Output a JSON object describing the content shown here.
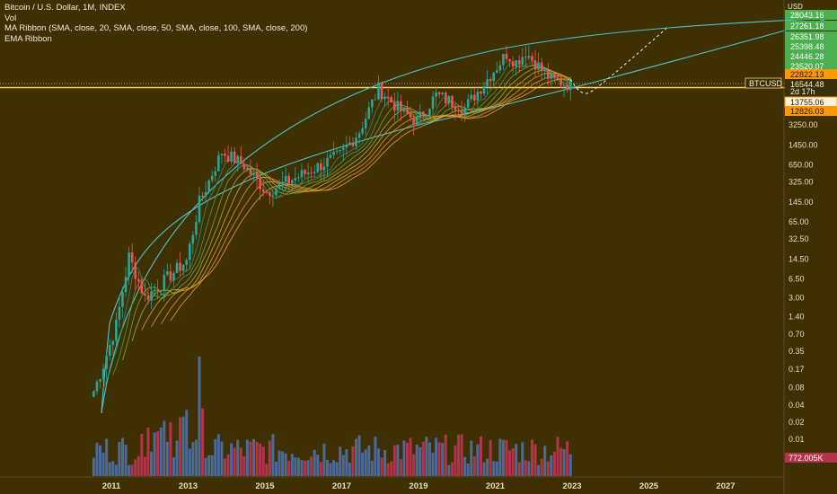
{
  "legend": {
    "title": "Bitcoin / U.S. Dollar, 1M, INDEX",
    "vol": "Vol",
    "ma_ribbon": "MA Ribbon (SMA, close, 20, SMA, close, 50, SMA, close, 100, SMA, close, 200)",
    "ema_ribbon": "EMA Ribbon"
  },
  "axis": {
    "currency": "USD",
    "symbol_tag": "BTCUSD",
    "countdown": "2d 17h",
    "volume_value": "772.005K"
  },
  "colors": {
    "background": "#3f3004",
    "up": "#26a69a",
    "down": "#ef5350",
    "vol_up": "#4a6a9a",
    "vol_down": "#b2344a",
    "curve": "#4fc3c8",
    "hline": "#f5d36a",
    "green_badge": "#4caf50",
    "orange_badge": "#ff9800"
  },
  "chart_data": {
    "type": "candlestick",
    "title": "Bitcoin / U.S. Dollar, 1M, INDEX",
    "y_scale": "log",
    "y_tick_labels": [
      "3250.00",
      "1450.00",
      "650.00",
      "325.00",
      "145.00",
      "65.00",
      "32.50",
      "14.50",
      "6.50",
      "3.00",
      "1.40",
      "0.70",
      "0.35",
      "0.17",
      "0.08",
      "0.04",
      "0.02",
      "0.01"
    ],
    "x_tick_labels": [
      "2011",
      "2013",
      "2015",
      "2017",
      "2019",
      "2021",
      "2023",
      "2025",
      "2027"
    ],
    "price_badges": [
      {
        "value": "28043.16",
        "kind": "green"
      },
      {
        "value": "27261.18",
        "kind": "green"
      },
      {
        "value": "26351.98",
        "kind": "green"
      },
      {
        "value": "25398.48",
        "kind": "green"
      },
      {
        "value": "24446.28",
        "kind": "green"
      },
      {
        "value": "23520.07",
        "kind": "green"
      },
      {
        "value": "22822.13",
        "kind": "orange"
      },
      {
        "value": "16544.48",
        "kind": "dark"
      },
      {
        "value": "13755.06",
        "kind": "orange_outline"
      },
      {
        "value": "12826.03",
        "kind": "orange"
      }
    ],
    "current_price": "16544.48",
    "monthly_close_approx": [
      {
        "date": "2010-07",
        "close": 0.07
      },
      {
        "date": "2010-10",
        "close": 0.2
      },
      {
        "date": "2011-02",
        "close": 1.0
      },
      {
        "date": "2011-06",
        "close": 16
      },
      {
        "date": "2011-11",
        "close": 3
      },
      {
        "date": "2012-06",
        "close": 6.7
      },
      {
        "date": "2012-12",
        "close": 13.5
      },
      {
        "date": "2013-04",
        "close": 140
      },
      {
        "date": "2013-11",
        "close": 1100
      },
      {
        "date": "2014-06",
        "close": 630
      },
      {
        "date": "2015-01",
        "close": 220
      },
      {
        "date": "2015-12",
        "close": 430
      },
      {
        "date": "2016-12",
        "close": 960
      },
      {
        "date": "2017-06",
        "close": 2500
      },
      {
        "date": "2017-12",
        "close": 14000
      },
      {
        "date": "2018-06",
        "close": 6400
      },
      {
        "date": "2018-12",
        "close": 3700
      },
      {
        "date": "2019-06",
        "close": 10800
      },
      {
        "date": "2020-03",
        "close": 6400
      },
      {
        "date": "2020-12",
        "close": 29000
      },
      {
        "date": "2021-04",
        "close": 57000
      },
      {
        "date": "2021-07",
        "close": 41000
      },
      {
        "date": "2021-10",
        "close": 61000
      },
      {
        "date": "2022-06",
        "close": 19900
      },
      {
        "date": "2022-11",
        "close": 17100
      },
      {
        "date": "2022-12",
        "close": 16544
      }
    ],
    "projected_path": [
      {
        "date": "2023-06",
        "close": 12000
      },
      {
        "date": "2025-06",
        "close": 160000
      }
    ]
  }
}
